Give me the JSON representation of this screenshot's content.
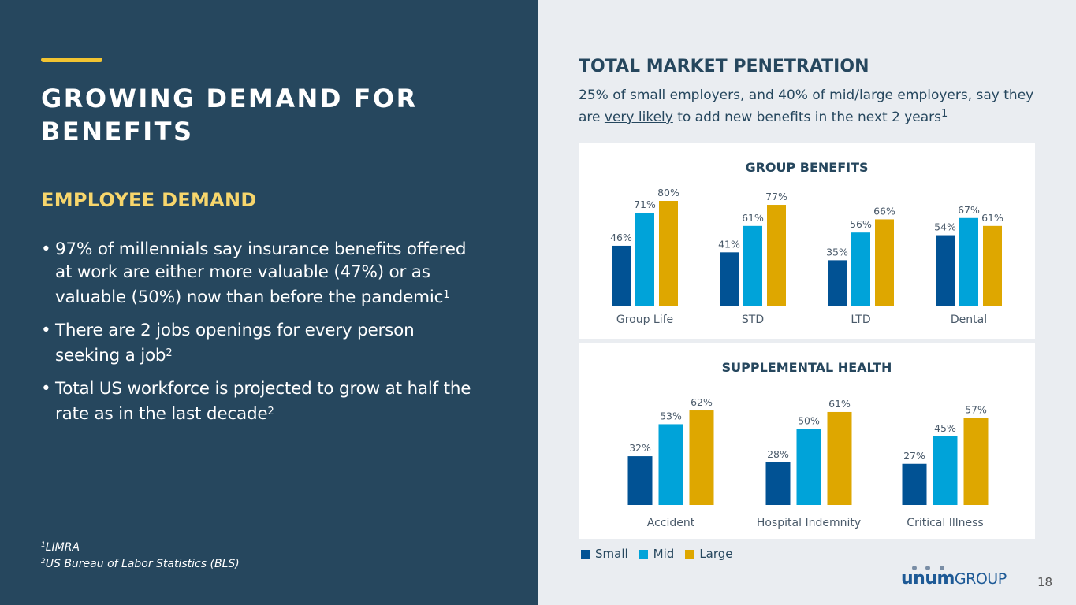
{
  "left": {
    "title": "GROWING DEMAND FOR BENEFITS",
    "subtitle": "EMPLOYEE DEMAND",
    "bullets": [
      {
        "text": "97% of millennials say insurance benefits offered at work are either more valuable (47%) or as valuable (50%) now than before the pandemic",
        "sup": "1"
      },
      {
        "text": "There are 2 jobs openings for every person seeking a job",
        "sup": "2"
      },
      {
        "text": "Total US workforce is projected to grow at half the rate as in the last decade",
        "sup": "2"
      }
    ],
    "footnotes": [
      {
        "sup": "1",
        "text": "LIMRA"
      },
      {
        "sup": "2",
        "text": "US Bureau of Labor Statistics (BLS)"
      }
    ]
  },
  "right": {
    "title": "TOTAL MARKET PENETRATION",
    "sub_pre": "25% of small employers, and 40% of mid/large employers, say they are ",
    "sub_u": "very likely",
    "sub_post": " to add new benefits in the next 2 years",
    "sub_sup": "1"
  },
  "legend": [
    {
      "label": "Small",
      "color": "#015294"
    },
    {
      "label": "Mid",
      "color": "#00a3d9"
    },
    {
      "label": "Large",
      "color": "#dea700"
    }
  ],
  "logo": {
    "brand": "unum",
    "suffix": "GROUP"
  },
  "page_number": "18",
  "chart_data": [
    {
      "type": "bar",
      "title": "GROUP BENEFITS",
      "categories": [
        "Group Life",
        "STD",
        "LTD",
        "Dental"
      ],
      "series": [
        {
          "name": "Small",
          "values": [
            46,
            41,
            35,
            54
          ]
        },
        {
          "name": "Mid",
          "values": [
            71,
            61,
            56,
            67
          ]
        },
        {
          "name": "Large",
          "values": [
            80,
            77,
            66,
            61
          ]
        }
      ],
      "ylim": [
        0,
        100
      ],
      "unit": "%"
    },
    {
      "type": "bar",
      "title": "SUPPLEMENTAL HEALTH",
      "categories": [
        "Accident",
        "Hospital Indemnity",
        "Critical Illness"
      ],
      "series": [
        {
          "name": "Small",
          "values": [
            32,
            28,
            27
          ]
        },
        {
          "name": "Mid",
          "values": [
            53,
            50,
            45
          ]
        },
        {
          "name": "Large",
          "values": [
            62,
            61,
            57
          ]
        }
      ],
      "ylim": [
        0,
        100
      ],
      "unit": "%"
    }
  ]
}
